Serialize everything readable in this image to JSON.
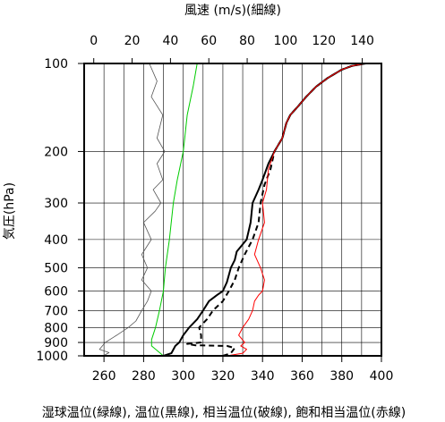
{
  "chart_data": {
    "type": "line",
    "title": "",
    "top_axis": {
      "label": "風速 (m/s)(細線)",
      "range": [
        -5,
        150
      ],
      "ticks": [
        0,
        20,
        40,
        60,
        80,
        100,
        120,
        140
      ]
    },
    "bottom_axis": {
      "label": "湿球温位(緑線), 温位(黒線), 相当温位(破線), 飽和相当温位(赤線)",
      "range": [
        250,
        400
      ],
      "ticks": [
        260,
        280,
        300,
        320,
        340,
        360,
        380,
        400
      ]
    },
    "y_axis": {
      "label": "気圧(hPa)",
      "scale": "log",
      "range": [
        1000,
        100
      ],
      "ticks": [
        100,
        200,
        300,
        400,
        500,
        600,
        700,
        800,
        900,
        1000
      ]
    },
    "grid": true,
    "series": [
      {
        "name": "湿球温位",
        "axis": "bottom",
        "color": "#00cc00",
        "style": "solid",
        "points": [
          [
            290,
            1000
          ],
          [
            284,
            925
          ],
          [
            284,
            880
          ],
          [
            286,
            800
          ],
          [
            288,
            700
          ],
          [
            290,
            600
          ],
          [
            291,
            500
          ],
          [
            293,
            400
          ],
          [
            295,
            300
          ],
          [
            297,
            250
          ],
          [
            300,
            200
          ],
          [
            302,
            150
          ],
          [
            305,
            120
          ],
          [
            307,
            100
          ]
        ]
      },
      {
        "name": "温位",
        "axis": "bottom",
        "color": "#000000",
        "style": "solid",
        "points": [
          [
            290,
            1000
          ],
          [
            294,
            980
          ],
          [
            296,
            925
          ],
          [
            298,
            900
          ],
          [
            300,
            850
          ],
          [
            303,
            800
          ],
          [
            307,
            750
          ],
          [
            310,
            700
          ],
          [
            313,
            650
          ],
          [
            317,
            620
          ],
          [
            320,
            600
          ],
          [
            322,
            560
          ],
          [
            324,
            500
          ],
          [
            326,
            470
          ],
          [
            327,
            440
          ],
          [
            332,
            400
          ],
          [
            334,
            350
          ],
          [
            335,
            300
          ],
          [
            338,
            270
          ],
          [
            340,
            250
          ],
          [
            343,
            220
          ],
          [
            346,
            200
          ],
          [
            350,
            180
          ],
          [
            352,
            160
          ],
          [
            354,
            150
          ],
          [
            358,
            140
          ],
          [
            362,
            130
          ],
          [
            367,
            120
          ],
          [
            373,
            112
          ],
          [
            380,
            105
          ],
          [
            385,
            102
          ],
          [
            392,
            100
          ]
        ]
      },
      {
        "name": "相当温位",
        "axis": "bottom",
        "color": "#000000",
        "style": "dashed",
        "points": [
          [
            320,
            1000
          ],
          [
            324,
            980
          ],
          [
            326,
            940
          ],
          [
            322,
            925
          ],
          [
            306,
            920
          ],
          [
            302,
            910
          ],
          [
            309,
            900
          ],
          [
            309,
            850
          ],
          [
            308,
            800
          ],
          [
            312,
            750
          ],
          [
            315,
            700
          ],
          [
            320,
            650
          ],
          [
            323,
            600
          ],
          [
            326,
            550
          ],
          [
            328,
            500
          ],
          [
            331,
            450
          ],
          [
            335,
            400
          ],
          [
            338,
            350
          ],
          [
            339,
            300
          ],
          [
            341,
            260
          ],
          [
            344,
            230
          ],
          [
            346,
            200
          ],
          [
            350,
            180
          ],
          [
            352,
            160
          ],
          [
            354,
            150
          ],
          [
            358,
            140
          ],
          [
            362,
            130
          ],
          [
            367,
            120
          ],
          [
            373,
            112
          ],
          [
            380,
            105
          ],
          [
            385,
            102
          ],
          [
            392,
            100
          ]
        ]
      },
      {
        "name": "飽和相当温位",
        "axis": "bottom",
        "color": "#ff0000",
        "style": "solid",
        "points": [
          [
            322,
            1000
          ],
          [
            330,
            980
          ],
          [
            332,
            950
          ],
          [
            329,
            925
          ],
          [
            331,
            900
          ],
          [
            328,
            850
          ],
          [
            330,
            800
          ],
          [
            333,
            750
          ],
          [
            335,
            700
          ],
          [
            336,
            650
          ],
          [
            338,
            620
          ],
          [
            340,
            600
          ],
          [
            341,
            550
          ],
          [
            339,
            500
          ],
          [
            336,
            450
          ],
          [
            338,
            400
          ],
          [
            341,
            350
          ],
          [
            340,
            300
          ],
          [
            342,
            270
          ],
          [
            343,
            230
          ],
          [
            346,
            200
          ],
          [
            350,
            180
          ],
          [
            352,
            160
          ],
          [
            354,
            150
          ],
          [
            358,
            140
          ],
          [
            362,
            130
          ],
          [
            367,
            120
          ],
          [
            373,
            112
          ],
          [
            380,
            105
          ],
          [
            385,
            102
          ],
          [
            392,
            100
          ]
        ]
      },
      {
        "name": "風速",
        "axis": "top",
        "color": "#555555",
        "style": "thin",
        "points": [
          [
            5,
            1000
          ],
          [
            8,
            975
          ],
          [
            3,
            950
          ],
          [
            6,
            900
          ],
          [
            12,
            850
          ],
          [
            18,
            800
          ],
          [
            22,
            760
          ],
          [
            25,
            700
          ],
          [
            28,
            650
          ],
          [
            30,
            600
          ],
          [
            25,
            550
          ],
          [
            28,
            500
          ],
          [
            25,
            450
          ],
          [
            30,
            400
          ],
          [
            26,
            350
          ],
          [
            32,
            320
          ],
          [
            35,
            300
          ],
          [
            31,
            270
          ],
          [
            36,
            250
          ],
          [
            33,
            220
          ],
          [
            37,
            200
          ],
          [
            33,
            180
          ],
          [
            36,
            150
          ],
          [
            30,
            130
          ],
          [
            33,
            115
          ],
          [
            29,
            100
          ]
        ]
      }
    ]
  }
}
